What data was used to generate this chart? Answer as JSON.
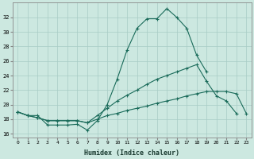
{
  "xlabel": "Humidex (Indice chaleur)",
  "background_color": "#cce8e0",
  "line_color": "#1a6b5a",
  "x": [
    0,
    1,
    2,
    3,
    4,
    5,
    6,
    7,
    8,
    9,
    10,
    11,
    12,
    13,
    14,
    15,
    16,
    17,
    18,
    19,
    20,
    21,
    22,
    23
  ],
  "line1": [
    19.0,
    18.5,
    18.5,
    17.2,
    17.2,
    17.2,
    17.3,
    16.5,
    17.8,
    20.0,
    23.5,
    27.5,
    30.5,
    31.8,
    31.8,
    33.2,
    32.0,
    30.5,
    26.8,
    24.5,
    null,
    null,
    null,
    null
  ],
  "line2": [
    19.0,
    18.5,
    18.2,
    17.8,
    17.8,
    17.8,
    17.8,
    17.5,
    18.5,
    19.5,
    20.5,
    21.3,
    22.0,
    22.8,
    23.5,
    24.0,
    24.5,
    25.0,
    25.5,
    23.2,
    21.2,
    20.5,
    18.8,
    null
  ],
  "line3": [
    19.0,
    18.5,
    18.2,
    17.8,
    17.8,
    17.8,
    17.8,
    17.5,
    18.0,
    18.5,
    18.8,
    19.2,
    19.5,
    19.8,
    20.2,
    20.5,
    20.8,
    21.2,
    21.5,
    21.8,
    21.8,
    21.8,
    21.5,
    18.8
  ],
  "ylim": [
    15.5,
    34.0
  ],
  "xlim": [
    -0.5,
    23.5
  ],
  "yticks": [
    16,
    18,
    20,
    22,
    24,
    26,
    28,
    30,
    32
  ],
  "xticks": [
    0,
    1,
    2,
    3,
    4,
    5,
    6,
    7,
    8,
    9,
    10,
    11,
    12,
    13,
    14,
    15,
    16,
    17,
    18,
    19,
    20,
    21,
    22,
    23
  ]
}
